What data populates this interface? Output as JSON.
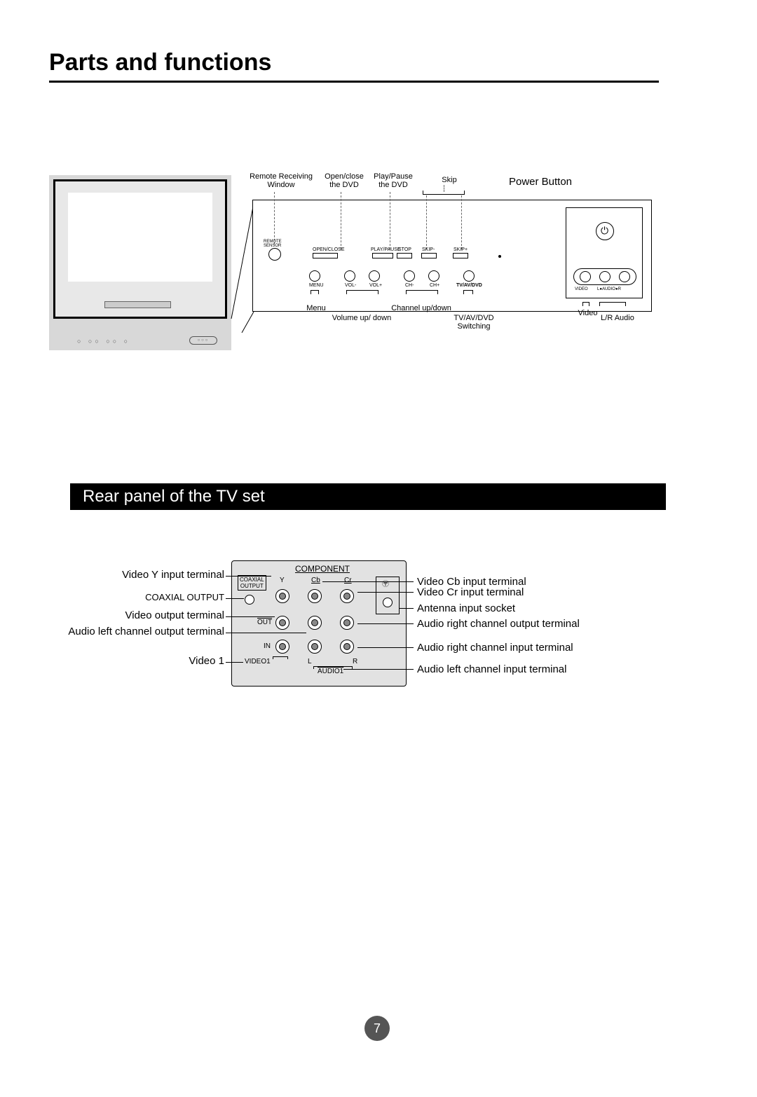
{
  "title": "Parts and functions",
  "page_number": "7",
  "panel": {
    "labels_top": {
      "remote": "Remote Receiving\nWindow",
      "openclose": "Open/close\nthe DVD",
      "playpause": "Play/Pause\nthe DVD",
      "skip": "Skip",
      "power": "Power Button"
    },
    "button_tiny": {
      "sensor": "REMOTE\nSENSOR",
      "openclose": "OPEN/CLOSE",
      "playpause": "PLAY/PAUSE",
      "stop": "STOP",
      "skipm": "SKIP-",
      "skipp": "SKIP+",
      "menu": "MENU",
      "volm": "VOL-",
      "volp": "VOL+",
      "chm": "CH-",
      "chp": "CH+",
      "tvavdvd": "TV/AV/DVD"
    },
    "labels_bottom": {
      "menu": "Menu",
      "volume": "Volume up/ down",
      "channel": "Channel up/down",
      "switching": "TV/AV/DVD\nSwitching",
      "video": "Video",
      "lraudio": "L/R Audio"
    },
    "trio_tiny": {
      "video": "VIDEO",
      "lr": "L●AUDIO●R"
    }
  },
  "rear_section_title": "Rear panel of the TV set",
  "rear": {
    "component": "COMPONENT",
    "y": "Y",
    "cb": "Cb",
    "cr": "Cr",
    "coax_box": "COAXIAL\nOUTPUT",
    "out": "OUT",
    "in": "IN",
    "video1": "VIDEO1",
    "l": "L",
    "r": "R",
    "audio1": "AUDIO1"
  },
  "leads_left": {
    "l1": "Video Y input terminal",
    "l2": "COAXIAL OUTPUT",
    "l3": "Video output terminal",
    "l4": "Audio left channel output terminal",
    "l5": "Video 1"
  },
  "leads_right": {
    "r1": "Video Cb input terminal",
    "r2": "Video Cr input terminal",
    "r3": "Antenna input socket",
    "r4": "Audio right channel output terminal",
    "r5": "Audio right channel input terminal",
    "r6": "Audio left channel input terminal"
  }
}
